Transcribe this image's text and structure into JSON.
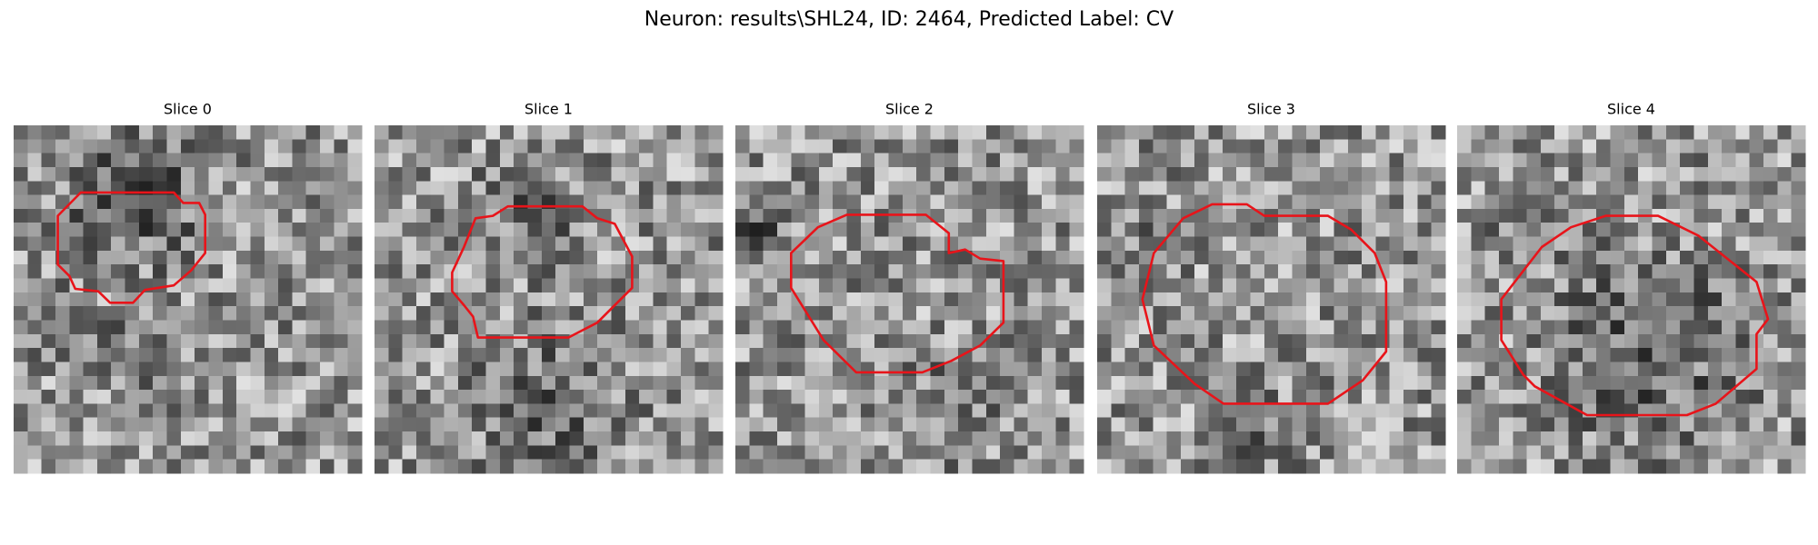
{
  "figure": {
    "title": "Neuron: results\\SHL24, ID: 2464, Predicted Label: CV",
    "panels": [
      {
        "title": "Slice 0"
      },
      {
        "title": "Slice 1"
      },
      {
        "title": "Slice 2"
      },
      {
        "title": "Slice 3"
      },
      {
        "title": "Slice 4"
      }
    ]
  }
}
